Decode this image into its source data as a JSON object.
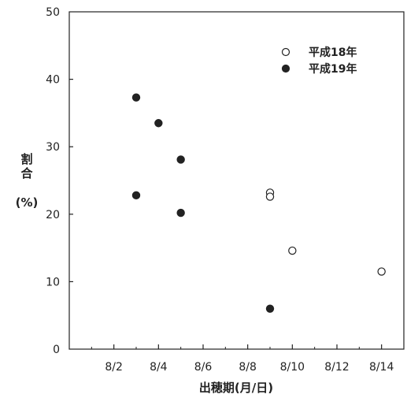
{
  "chart_data": {
    "type": "scatter",
    "xlabel": "出穂期(月/日)",
    "ylabel_lines": [
      "割",
      "合",
      "(%)"
    ],
    "x_ticks": [
      "8/2",
      "8/4",
      "8/6",
      "8/8",
      "8/10",
      "8/12",
      "8/14"
    ],
    "y_ticks": [
      0,
      10,
      20,
      30,
      40,
      50
    ],
    "xlim": [
      "7/31",
      "8/15"
    ],
    "ylim": [
      0,
      50
    ],
    "grid": false,
    "legend_position": "top-right",
    "series": [
      {
        "name": "平成18年",
        "marker": "open-circle",
        "points": [
          {
            "x": "8/9",
            "y": 23.2
          },
          {
            "x": "8/9",
            "y": 22.6
          },
          {
            "x": "8/10",
            "y": 14.6
          },
          {
            "x": "8/14",
            "y": 11.5
          }
        ]
      },
      {
        "name": "平成19年",
        "marker": "filled-circle",
        "points": [
          {
            "x": "8/3",
            "y": 37.3
          },
          {
            "x": "8/3",
            "y": 22.8
          },
          {
            "x": "8/4",
            "y": 33.5
          },
          {
            "x": "8/5",
            "y": 28.1
          },
          {
            "x": "8/5",
            "y": 20.2
          },
          {
            "x": "8/9",
            "y": 6.0
          }
        ]
      }
    ]
  }
}
